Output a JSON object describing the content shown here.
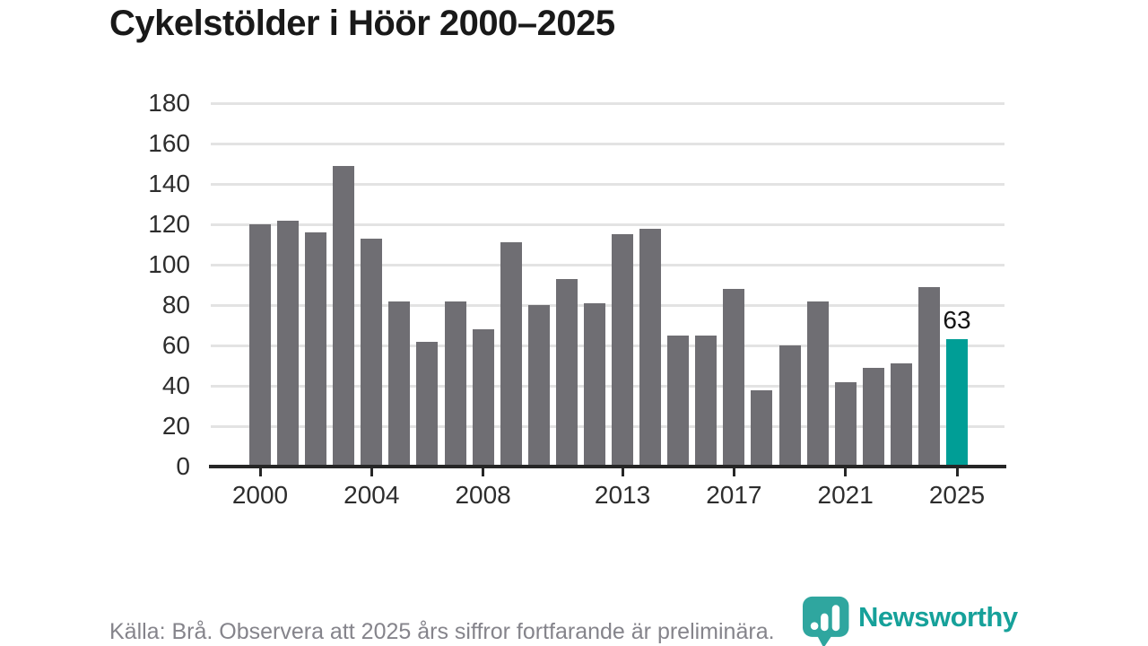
{
  "title": "Cykelstölder i Höör 2000–2025",
  "footer": {
    "source_note": "Källa: Brå. Observera att 2025 års siffror fortfarande är preliminära."
  },
  "branding": {
    "logo_text": "Newsworthy",
    "logo_icon": "bar-chart-speech-bubble-icon",
    "brand_color": "#2fa69f"
  },
  "colors": {
    "bar_default": "#6f6e73",
    "bar_highlight": "#009e96",
    "gridline": "#e3e3e3",
    "axis_line": "#262626",
    "axis_label": "#2d2d2d",
    "title_text": "#191919",
    "footer_text": "#85848b",
    "annotation_text": "#141414"
  },
  "chart_data": {
    "type": "bar",
    "title": "Cykelstölder i Höör 2000–2025",
    "xlabel": "",
    "ylabel": "",
    "x": [
      2000,
      2001,
      2002,
      2003,
      2004,
      2005,
      2006,
      2007,
      2008,
      2009,
      2010,
      2011,
      2012,
      2013,
      2014,
      2015,
      2016,
      2017,
      2018,
      2019,
      2020,
      2021,
      2022,
      2023,
      2024,
      2025
    ],
    "values": [
      120,
      122,
      116,
      149,
      113,
      82,
      62,
      82,
      68,
      111,
      80,
      93,
      81,
      115,
      118,
      65,
      65,
      88,
      38,
      60,
      82,
      42,
      49,
      51,
      89,
      63
    ],
    "highlight_year": 2025,
    "annotation": {
      "year": 2025,
      "label": "63"
    },
    "ylim": [
      0,
      180
    ],
    "yticks": [
      0,
      20,
      40,
      60,
      80,
      100,
      120,
      140,
      160,
      180
    ],
    "xticks": [
      2000,
      2004,
      2008,
      2013,
      2017,
      2021,
      2025
    ],
    "grid": true,
    "legend": false
  }
}
